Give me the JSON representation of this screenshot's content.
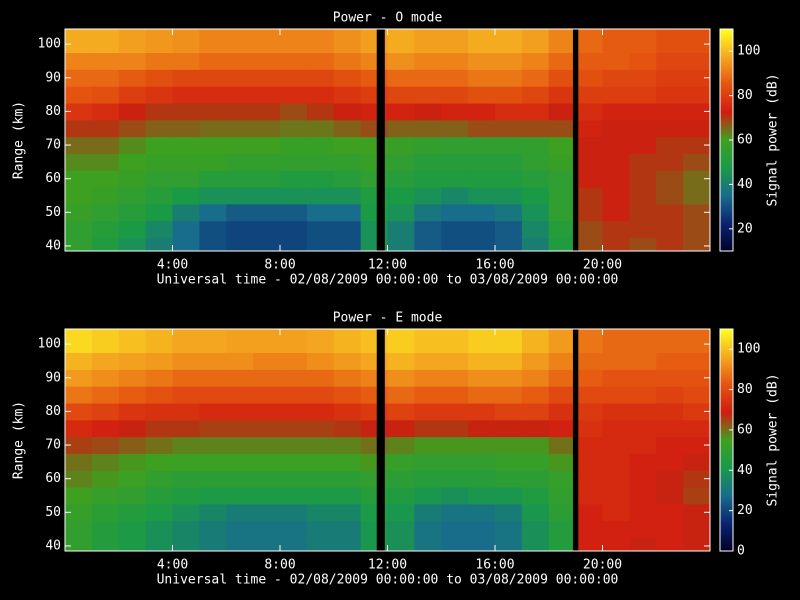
{
  "chart_data": [
    {
      "type": "heatmap",
      "title": "Power - O mode",
      "xlabel": "Universal time - 02/08/2009 00:00:00 to 03/08/2009 00:00:00",
      "ylabel": "Range (km)",
      "colorbar_label": "Signal power (dB)",
      "xbins": [
        0,
        1,
        2,
        3,
        4,
        5,
        6,
        7,
        8,
        9,
        10,
        11,
        12,
        13,
        14,
        15,
        16,
        17,
        18,
        19,
        20,
        21,
        22,
        23,
        24
      ],
      "ybins": [
        38.5,
        42.5,
        47.5,
        52.5,
        57.5,
        62.5,
        67.5,
        72.5,
        77.5,
        82.5,
        87.5,
        92.5,
        97.5,
        104.5
      ],
      "xlim": [
        0,
        24
      ],
      "ylim": [
        38.5,
        104.5
      ],
      "clim": [
        10,
        110
      ],
      "xticks": [
        {
          "value": 4,
          "label": "4:00"
        },
        {
          "value": 8,
          "label": "8:00"
        },
        {
          "value": 12,
          "label": "12:00"
        },
        {
          "value": 16,
          "label": "16:00"
        },
        {
          "value": 20,
          "label": "20:00"
        }
      ],
      "yticks": [
        40,
        50,
        60,
        70,
        80,
        90,
        100
      ],
      "cticks": [
        20,
        40,
        60,
        80,
        100
      ],
      "colormap": [
        "#000028",
        "#0a2470",
        "#186c8c",
        "#1a9a48",
        "#3ea020",
        "#d01c10",
        "#e45410",
        "#f4a820",
        "#ffff20"
      ],
      "gaps": [
        [
          11.6,
          11.9
        ],
        [
          18.9,
          19.1
        ]
      ],
      "z": [
        [
          55,
          50,
          45,
          40,
          35,
          30,
          28,
          28,
          28,
          30,
          30,
          45,
          40,
          32,
          30,
          30,
          32,
          40,
          50,
          68,
          70,
          68,
          70,
          68
        ],
        [
          55,
          52,
          48,
          42,
          35,
          30,
          28,
          28,
          28,
          30,
          30,
          45,
          40,
          32,
          30,
          30,
          32,
          42,
          52,
          68,
          70,
          70,
          70,
          68
        ],
        [
          58,
          55,
          52,
          48,
          40,
          35,
          32,
          32,
          32,
          35,
          35,
          48,
          45,
          38,
          35,
          35,
          38,
          45,
          55,
          70,
          72,
          70,
          70,
          68
        ],
        [
          60,
          58,
          55,
          52,
          48,
          45,
          45,
          45,
          45,
          45,
          45,
          50,
          48,
          45,
          42,
          45,
          45,
          48,
          55,
          70,
          72,
          70,
          68,
          65
        ],
        [
          60,
          60,
          58,
          55,
          55,
          52,
          52,
          52,
          50,
          50,
          52,
          55,
          52,
          50,
          50,
          50,
          50,
          52,
          55,
          72,
          72,
          70,
          68,
          65
        ],
        [
          62,
          62,
          60,
          58,
          58,
          58,
          56,
          56,
          56,
          56,
          56,
          58,
          55,
          52,
          52,
          52,
          52,
          55,
          58,
          72,
          72,
          70,
          70,
          68
        ],
        [
          65,
          65,
          62,
          60,
          60,
          60,
          60,
          60,
          58,
          58,
          60,
          60,
          58,
          56,
          55,
          55,
          55,
          56,
          60,
          72,
          72,
          72,
          70,
          70
        ],
        [
          70,
          70,
          68,
          66,
          66,
          65,
          65,
          65,
          64,
          64,
          66,
          68,
          66,
          66,
          66,
          68,
          68,
          68,
          68,
          74,
          72,
          72,
          72,
          72
        ],
        [
          78,
          76,
          72,
          70,
          70,
          70,
          70,
          70,
          68,
          70,
          72,
          74,
          74,
          72,
          74,
          74,
          76,
          76,
          72,
          76,
          74,
          74,
          74,
          74
        ],
        [
          85,
          84,
          80,
          78,
          76,
          76,
          76,
          76,
          76,
          76,
          78,
          80,
          82,
          82,
          82,
          84,
          84,
          82,
          78,
          80,
          80,
          80,
          78,
          78
        ],
        [
          88,
          88,
          86,
          84,
          82,
          82,
          82,
          82,
          82,
          82,
          84,
          86,
          88,
          88,
          88,
          90,
          90,
          88,
          84,
          84,
          82,
          82,
          80,
          80
        ],
        [
          92,
          92,
          92,
          90,
          90,
          88,
          88,
          88,
          88,
          88,
          90,
          92,
          94,
          92,
          92,
          94,
          94,
          92,
          88,
          86,
          86,
          85,
          82,
          82
        ],
        [
          98,
          98,
          96,
          95,
          94,
          92,
          92,
          92,
          92,
          92,
          94,
          96,
          98,
          96,
          96,
          98,
          98,
          96,
          92,
          88,
          86,
          86,
          84,
          84
        ]
      ]
    },
    {
      "type": "heatmap",
      "title": "Power - E mode",
      "xlabel": "Universal time - 02/08/2009 00:00:00 to 03/08/2009 00:00:00",
      "ylabel": "Range (km)",
      "colorbar_label": "Signal power (dB)",
      "xbins": [
        0,
        1,
        2,
        3,
        4,
        5,
        6,
        7,
        8,
        9,
        10,
        11,
        12,
        13,
        14,
        15,
        16,
        17,
        18,
        19,
        20,
        21,
        22,
        23,
        24
      ],
      "ybins": [
        38.5,
        42.5,
        47.5,
        52.5,
        57.5,
        62.5,
        67.5,
        72.5,
        77.5,
        82.5,
        87.5,
        92.5,
        97.5,
        104.5
      ],
      "xlim": [
        0,
        24
      ],
      "ylim": [
        38.5,
        104.5
      ],
      "clim": [
        0,
        110
      ],
      "xticks": [
        {
          "value": 4,
          "label": "4:00"
        },
        {
          "value": 8,
          "label": "8:00"
        },
        {
          "value": 12,
          "label": "12:00"
        },
        {
          "value": 16,
          "label": "16:00"
        },
        {
          "value": 20,
          "label": "20:00"
        }
      ],
      "yticks": [
        40,
        50,
        60,
        70,
        80,
        90,
        100
      ],
      "cticks": [
        0,
        20,
        40,
        60,
        80,
        100
      ],
      "colormap": [
        "#000028",
        "#0a2470",
        "#186c8c",
        "#1a9a48",
        "#3ea020",
        "#d01c10",
        "#e45410",
        "#f4a820",
        "#ffff20"
      ],
      "gaps": [
        [
          11.6,
          11.9
        ],
        [
          18.9,
          19.1
        ]
      ],
      "z": [
        [
          50,
          45,
          42,
          38,
          35,
          32,
          30,
          30,
          30,
          32,
          32,
          40,
          38,
          30,
          28,
          28,
          30,
          38,
          45,
          70,
          70,
          68,
          70,
          68
        ],
        [
          50,
          45,
          42,
          38,
          35,
          32,
          30,
          30,
          30,
          32,
          32,
          40,
          38,
          30,
          28,
          28,
          30,
          38,
          45,
          70,
          70,
          70,
          70,
          68
        ],
        [
          52,
          48,
          45,
          42,
          38,
          35,
          32,
          32,
          32,
          35,
          35,
          42,
          40,
          32,
          30,
          30,
          32,
          40,
          48,
          70,
          72,
          70,
          70,
          68
        ],
        [
          55,
          52,
          50,
          46,
          44,
          42,
          42,
          42,
          42,
          42,
          42,
          46,
          44,
          40,
          38,
          40,
          40,
          44,
          50,
          72,
          72,
          70,
          68,
          65
        ],
        [
          58,
          56,
          54,
          50,
          48,
          48,
          48,
          48,
          48,
          48,
          48,
          50,
          48,
          46,
          46,
          46,
          48,
          48,
          52,
          72,
          72,
          70,
          68,
          66
        ],
        [
          60,
          58,
          56,
          55,
          54,
          54,
          54,
          54,
          54,
          54,
          54,
          56,
          52,
          50,
          50,
          50,
          52,
          52,
          56,
          72,
          72,
          70,
          70,
          68
        ],
        [
          65,
          64,
          62,
          60,
          58,
          58,
          58,
          58,
          58,
          58,
          58,
          60,
          58,
          56,
          56,
          56,
          56,
          56,
          60,
          72,
          72,
          72,
          70,
          70
        ],
        [
          72,
          70,
          68,
          66,
          66,
          65,
          65,
          65,
          65,
          65,
          66,
          68,
          68,
          66,
          66,
          68,
          68,
          68,
          70,
          74,
          72,
          72,
          72,
          72
        ],
        [
          80,
          78,
          75,
          74,
          74,
          72,
          72,
          72,
          72,
          72,
          74,
          76,
          78,
          76,
          76,
          76,
          78,
          78,
          74,
          76,
          74,
          74,
          74,
          76
        ],
        [
          88,
          86,
          84,
          82,
          80,
          80,
          80,
          80,
          80,
          80,
          82,
          84,
          86,
          84,
          84,
          86,
          86,
          84,
          80,
          80,
          80,
          80,
          78,
          80
        ],
        [
          94,
          92,
          90,
          88,
          86,
          86,
          86,
          86,
          86,
          86,
          88,
          90,
          92,
          90,
          90,
          92,
          92,
          90,
          86,
          84,
          82,
          82,
          82,
          82
        ],
        [
          98,
          96,
          95,
          94,
          92,
          92,
          92,
          90,
          90,
          92,
          94,
          96,
          98,
          96,
          96,
          98,
          98,
          94,
          90,
          86,
          86,
          86,
          84,
          84
        ],
        [
          104,
          102,
          100,
          98,
          96,
          96,
          95,
          95,
          95,
          96,
          98,
          100,
          102,
          100,
          100,
          102,
          102,
          98,
          94,
          88,
          86,
          86,
          86,
          86
        ]
      ]
    }
  ]
}
